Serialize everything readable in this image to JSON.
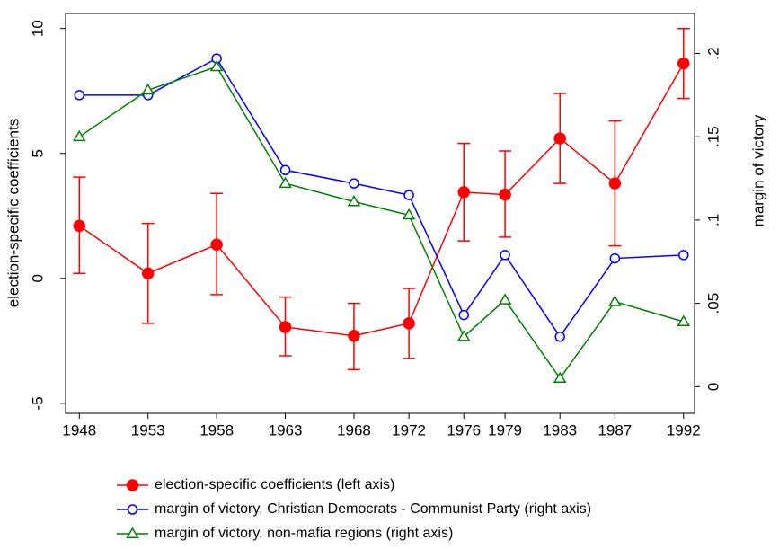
{
  "chart_data": {
    "type": "line",
    "y_label": "election-specific coefficients",
    "y2_label": "margin of victory",
    "x": [
      1948,
      1953,
      1958,
      1963,
      1968,
      1972,
      1976,
      1979,
      1983,
      1987,
      1992
    ],
    "xlim": [
      1947,
      1992.8
    ],
    "xticks": [
      1948,
      1953,
      1958,
      1963,
      1968,
      1972,
      1976,
      1979,
      1983,
      1987,
      1992
    ],
    "ylim": [
      -5.4,
      10.6
    ],
    "yticks": [
      -5,
      0,
      5,
      10
    ],
    "y2lim": [
      -0.016,
      0.224
    ],
    "y2ticks": [
      0,
      {
        "value": 0.05,
        "label": ".05"
      },
      {
        "value": 0.1,
        "label": ".1"
      },
      {
        "value": 0.15,
        "label": ".15"
      },
      {
        "value": 0.2,
        "label": ".2"
      }
    ],
    "series": [
      {
        "name": "election-specific coefficients (left axis)",
        "color": "#ff0000",
        "marker": "filled-circle",
        "values": [
          2.1,
          0.2,
          1.35,
          -1.95,
          -2.3,
          -1.8,
          3.45,
          3.35,
          5.6,
          3.8,
          8.6
        ],
        "lower": [
          0.2,
          -1.8,
          -0.65,
          -3.1,
          -3.65,
          -3.2,
          1.5,
          1.65,
          3.8,
          1.3,
          7.2
        ],
        "upper": [
          4.05,
          2.2,
          3.4,
          -0.75,
          -1.0,
          -0.4,
          5.4,
          5.1,
          7.4,
          6.3,
          10.0
        ]
      },
      {
        "name": "margin of victory, Christian Democrats - Communist Party (right axis)",
        "color": "#0000ff",
        "marker": "hollow-circle",
        "axis": "y2",
        "values": [
          0.175,
          0.175,
          0.197,
          0.13,
          0.122,
          0.115,
          0.043,
          0.079,
          0.03,
          0.077,
          0.079
        ]
      },
      {
        "name": "margin of victory, non-mafia regions (right axis)",
        "color": "#008000",
        "marker": "hollow-triangle",
        "axis": "y2",
        "values": [
          0.15,
          0.178,
          0.192,
          0.122,
          0.111,
          0.103,
          0.03,
          0.052,
          0.005,
          0.051,
          0.039
        ]
      }
    ]
  }
}
